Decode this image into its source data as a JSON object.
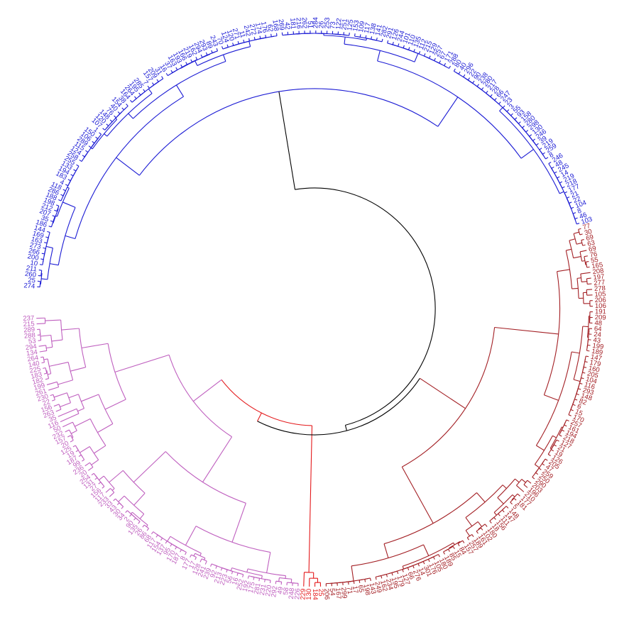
{
  "diagram": {
    "type": "circular-dendrogram",
    "colors": {
      "root": "#000000",
      "blue": "#1a1ad4",
      "purple": "#bf5fbf",
      "red": "#e41a1c",
      "darkred": "#a31f24"
    },
    "clusters": [
      {
        "name": "blue",
        "color": "#1a1ad4",
        "labels": [
          "274",
          "25",
          "260",
          "211",
          "10",
          "200",
          "266",
          "273",
          "163",
          "169",
          "144",
          "186",
          "35",
          "207",
          "212",
          "198",
          "188",
          "286",
          "118",
          "4",
          "183",
          "194",
          "133",
          "255",
          "258",
          "124",
          "115",
          "289",
          "106",
          "150",
          "1",
          "107",
          "120",
          "148",
          "76",
          "40",
          "154",
          "38",
          "164",
          "264",
          "195",
          "285",
          "7",
          "157",
          "209",
          "31",
          "16",
          "37",
          "163",
          "193",
          "166",
          "219",
          "162",
          "294",
          "293",
          "89",
          "243",
          "70",
          "124",
          "120",
          "271",
          "11",
          "242",
          "272",
          "174",
          "176",
          "62",
          "168",
          "269",
          "42",
          "181",
          "216",
          "262",
          "51",
          "284",
          "26",
          "253",
          "73",
          "122",
          "251",
          "125",
          "153",
          "109",
          "117",
          "138",
          "141",
          "282",
          "291",
          "126",
          "244",
          "101",
          "110",
          "135",
          "112",
          "215",
          "129",
          "257",
          "67",
          "171",
          "288",
          "80",
          "40",
          "296",
          "22",
          "90",
          "238",
          "280",
          "217",
          "28",
          "66",
          "247",
          "23",
          "3",
          "55",
          "93",
          "158",
          "280",
          "298",
          "130",
          "246",
          "39",
          "219",
          "259",
          "8",
          "246",
          "48",
          "245",
          "14",
          "219",
          "218",
          "177",
          "21",
          "22",
          "104",
          "8",
          "46",
          "103"
        ]
      },
      {
        "name": "darkred",
        "color": "#a31f24",
        "labels": [
          "77",
          "30",
          "69",
          "63",
          "69",
          "76",
          "55",
          "165",
          "208",
          "197",
          "277",
          "278",
          "105",
          "206",
          "106",
          "191",
          "209",
          "48",
          "64",
          "24",
          "43",
          "199",
          "189",
          "147",
          "179",
          "160",
          "205",
          "104",
          "116",
          "293",
          "148",
          "82",
          "6",
          "15",
          "170",
          "257",
          "161",
          "194",
          "218",
          "127",
          "21",
          "19",
          "126",
          "205",
          "47",
          "259",
          "250",
          "290",
          "203",
          "196",
          "210",
          "177",
          "181",
          "5",
          "148",
          "147",
          "111",
          "156",
          "18",
          "180",
          "102",
          "161",
          "189",
          "257",
          "157",
          "84",
          "15",
          "85",
          "189",
          "180",
          "105",
          "176",
          "301",
          "14",
          "276",
          "66",
          "127",
          "179",
          "195",
          "234",
          "162",
          "249",
          "143",
          "198",
          "65",
          "17",
          "71",
          "299",
          "167",
          "54",
          "206"
        ]
      },
      {
        "name": "red",
        "color": "#e41a1c",
        "labels": [
          "25",
          "184",
          "130",
          "229"
        ]
      },
      {
        "name": "purple",
        "color": "#bf5fbf",
        "labels": [
          "226",
          "248",
          "58",
          "49",
          "292",
          "220",
          "231",
          "281",
          "175",
          "192",
          "252",
          "16",
          "56",
          "223",
          "213",
          "92",
          "239",
          "241",
          "128",
          "17",
          "177",
          "8",
          "187",
          "170",
          "95",
          "137",
          "154",
          "117",
          "68",
          "86",
          "26",
          "135",
          "90",
          "2",
          "34",
          "30",
          "43",
          "33",
          "233",
          "117",
          "156",
          "27",
          "131",
          "254",
          "20",
          "236",
          "99",
          "187",
          "19",
          "125",
          "20",
          "157",
          "232",
          "50",
          "116",
          "35",
          "263",
          "156",
          "22",
          "230",
          "261",
          "199",
          "182",
          "183",
          "225",
          "140",
          "264",
          "134",
          "294",
          "53",
          "288",
          "289",
          "215",
          "237"
        ]
      }
    ]
  }
}
